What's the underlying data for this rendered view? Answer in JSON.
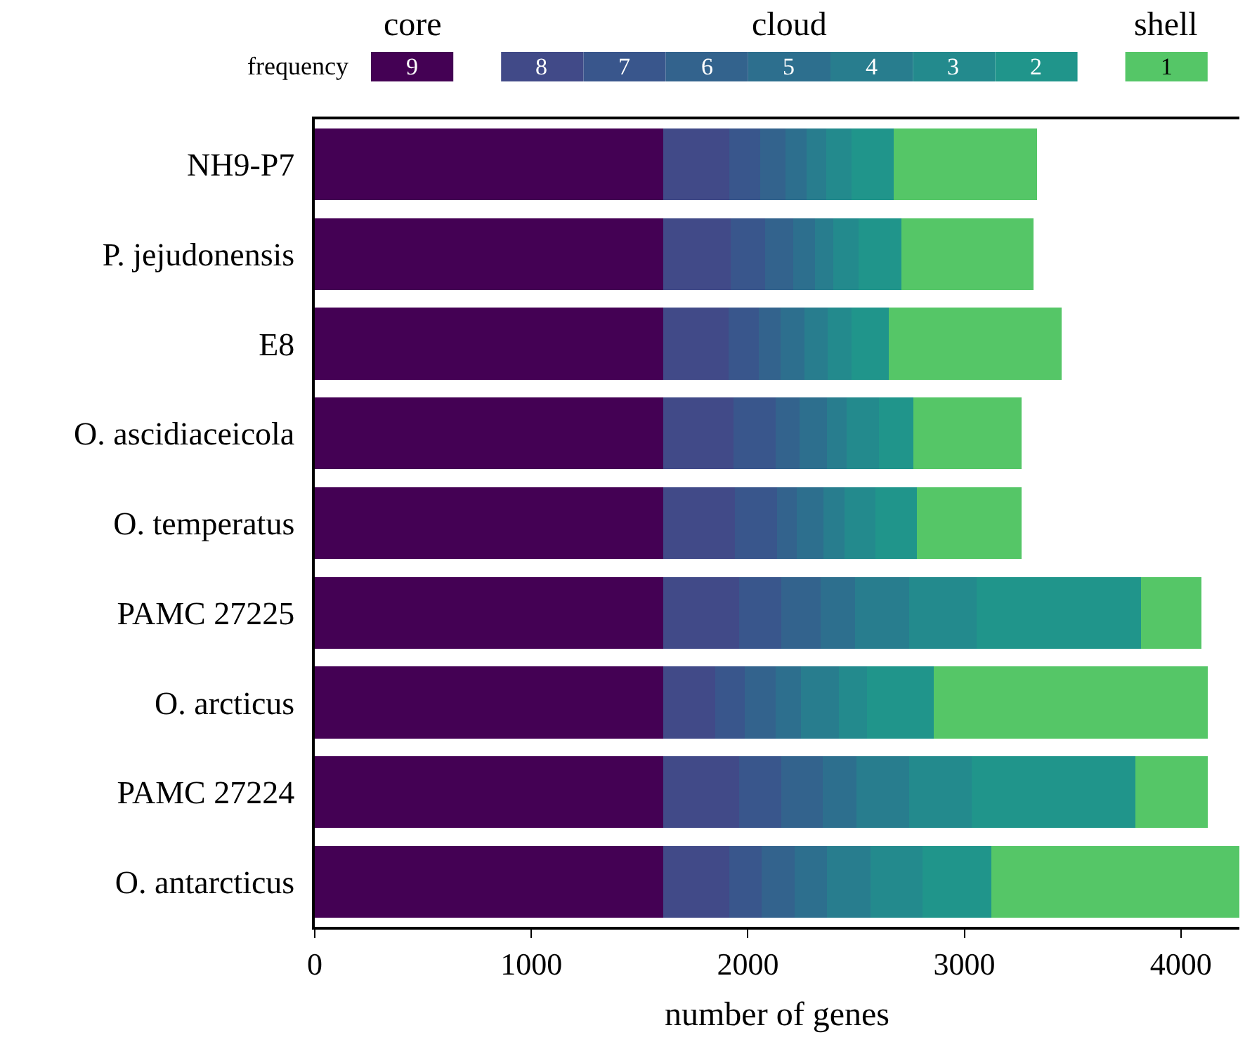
{
  "chart_data": {
    "type": "bar",
    "orientation": "horizontal",
    "stacked": true,
    "xlabel": "number of genes",
    "categories": [
      "NH9-P7",
      "P. jejudonensis",
      "E8",
      "O. ascidiaceicola",
      "O. temperatus",
      "PAMC 27225",
      "O. arcticus",
      "PAMC 27224",
      "O. antarcticus"
    ],
    "xlim": [
      0,
      4270
    ],
    "xticks": [
      0,
      1000,
      2000,
      3000,
      4000
    ],
    "legend": "top",
    "annotations": [
      "frequency",
      "core",
      "cloud",
      "shell"
    ],
    "series": [
      {
        "name": "9",
        "color": "#440154",
        "values": [
          1610,
          1610,
          1610,
          1610,
          1610,
          1610,
          1610,
          1610,
          1610
        ]
      },
      {
        "name": "8",
        "color": "#414a88",
        "values": [
          305,
          310,
          300,
          325,
          330,
          350,
          240,
          350,
          305
        ]
      },
      {
        "name": "7",
        "color": "#39568c",
        "values": [
          142,
          160,
          140,
          195,
          195,
          195,
          135,
          195,
          150
        ]
      },
      {
        "name": "6",
        "color": "#33638d",
        "values": [
          117,
          130,
          100,
          110,
          90,
          180,
          145,
          190,
          150
        ]
      },
      {
        "name": "5",
        "color": "#2d6f8e",
        "values": [
          98,
          100,
          110,
          125,
          125,
          160,
          115,
          155,
          150
        ]
      },
      {
        "name": "4",
        "color": "#287d8e",
        "values": [
          90,
          85,
          110,
          90,
          95,
          250,
          175,
          245,
          200
        ]
      },
      {
        "name": "3",
        "color": "#238a8d",
        "values": [
          117,
          115,
          110,
          150,
          145,
          310,
          130,
          290,
          240
        ]
      },
      {
        "name": "2",
        "color": "#20958b",
        "values": [
          195,
          200,
          170,
          160,
          190,
          760,
          310,
          755,
          320
        ]
      },
      {
        "name": "1",
        "color": "#55c667",
        "values": [
          662,
          610,
          800,
          500,
          485,
          280,
          1265,
          335,
          1155
        ]
      }
    ]
  }
}
